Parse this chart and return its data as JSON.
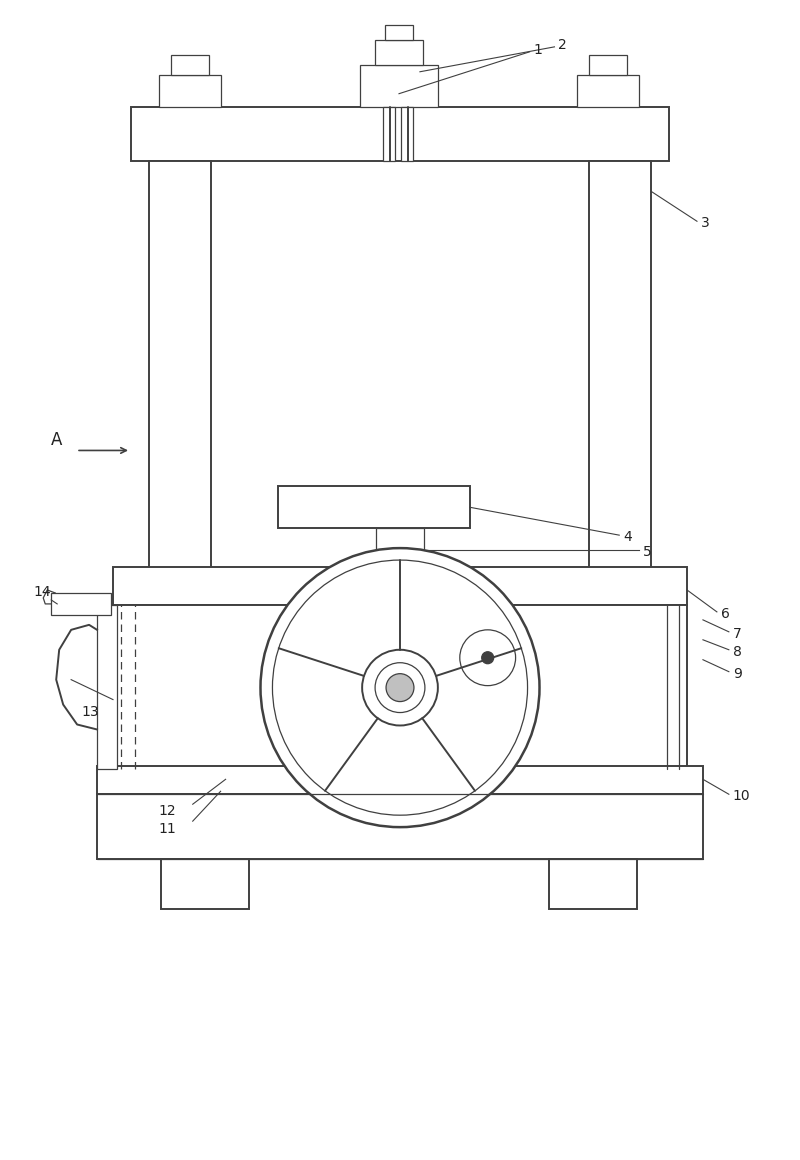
{
  "bg_color": "#ffffff",
  "line_color": "#404040",
  "lw_thin": 0.9,
  "lw_main": 1.4,
  "lw_thick": 1.8,
  "fig_width": 8.0,
  "fig_height": 11.6
}
